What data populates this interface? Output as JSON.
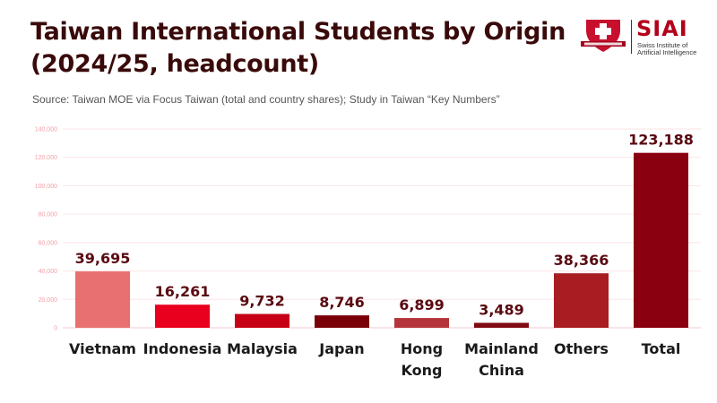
{
  "header": {
    "title_line1": "Taiwan International Students by Origin",
    "title_line2": "(2024/25, headcount)",
    "source": "Source: Taiwan MOE via Focus Taiwan (total and country shares); Study in Taiwan “Key Numbers”"
  },
  "logo": {
    "name": "SIAI",
    "subtitle_line1": "Swiss Institute of",
    "subtitle_line2": "Artificial Intelligence"
  },
  "chart_data": {
    "type": "bar",
    "title": "Taiwan International Students by Origin (2024/25, headcount)",
    "categories": [
      [
        "Vietnam"
      ],
      [
        "Indonesia"
      ],
      [
        "Malaysia"
      ],
      [
        "Japan"
      ],
      [
        "Hong",
        "Kong"
      ],
      [
        "Mainland",
        "China"
      ],
      [
        "Others"
      ],
      [
        "Total"
      ]
    ],
    "values": [
      39695,
      16261,
      9732,
      8746,
      6899,
      3489,
      38366,
      123188
    ],
    "value_labels": [
      "39,695",
      "16,261",
      "9,732",
      "8,746",
      "6,899",
      "3,489",
      "38,366",
      "123,188"
    ],
    "colors": [
      "#e87070",
      "#e8001e",
      "#c70016",
      "#7a0008",
      "#b5343c",
      "#800a12",
      "#a81c22",
      "#8b0010"
    ],
    "ylim": [
      0,
      140000
    ],
    "yticks": [
      0,
      20000,
      40000,
      60000,
      80000,
      100000,
      120000,
      140000
    ],
    "ytick_labels": [
      "0",
      "20,000",
      "40,000",
      "60,000",
      "80,000",
      "100,000",
      "120,000",
      "140,000"
    ],
    "grid": true
  }
}
